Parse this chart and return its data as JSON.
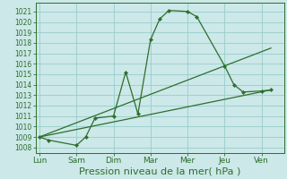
{
  "xlabel": "Pression niveau de la mer( hPa )",
  "background_color": "#cce8e8",
  "grid_color": "#99cccc",
  "line_color": "#2d6e2d",
  "x_labels": [
    "Lun",
    "Sam",
    "Dim",
    "Mar",
    "Mer",
    "Jeu",
    "Ven"
  ],
  "x_positions": [
    0,
    1,
    2,
    3,
    4,
    5,
    6
  ],
  "ylim": [
    1007.5,
    1021.8
  ],
  "yticks": [
    1008,
    1009,
    1010,
    1011,
    1012,
    1013,
    1014,
    1015,
    1016,
    1017,
    1018,
    1019,
    1020,
    1021
  ],
  "line1_x": [
    0.0,
    0.25,
    1.0,
    1.25,
    1.5,
    2.0,
    2.33,
    2.66,
    3.0,
    3.25,
    3.5,
    4.0,
    4.25,
    5.0,
    5.25,
    5.5,
    6.0,
    6.25
  ],
  "line1_y": [
    1009.0,
    1008.7,
    1008.2,
    1009.0,
    1010.8,
    1011.0,
    1015.2,
    1011.2,
    1018.3,
    1020.3,
    1021.1,
    1021.0,
    1020.5,
    1015.8,
    1014.0,
    1013.3,
    1013.4,
    1013.5
  ],
  "line2_x": [
    0.0,
    6.25
  ],
  "line2_y": [
    1009.0,
    1013.5
  ],
  "line3_x": [
    0.0,
    6.25
  ],
  "line3_y": [
    1009.0,
    1017.5
  ],
  "markers1_x": [
    0.0,
    0.25,
    1.0,
    1.25,
    1.5,
    2.0,
    2.33,
    2.66,
    3.0,
    3.25,
    3.5,
    4.0,
    4.25,
    5.0,
    5.25,
    5.5,
    6.0,
    6.25
  ],
  "markers1_y": [
    1009.0,
    1008.7,
    1008.2,
    1009.0,
    1010.8,
    1011.0,
    1015.2,
    1011.2,
    1018.3,
    1020.3,
    1021.1,
    1021.0,
    1020.5,
    1015.8,
    1014.0,
    1013.3,
    1013.4,
    1013.5
  ],
  "xlim": [
    -0.1,
    6.6
  ],
  "xlabel_fontsize": 8,
  "ytick_fontsize": 5.5,
  "xtick_fontsize": 6.5
}
